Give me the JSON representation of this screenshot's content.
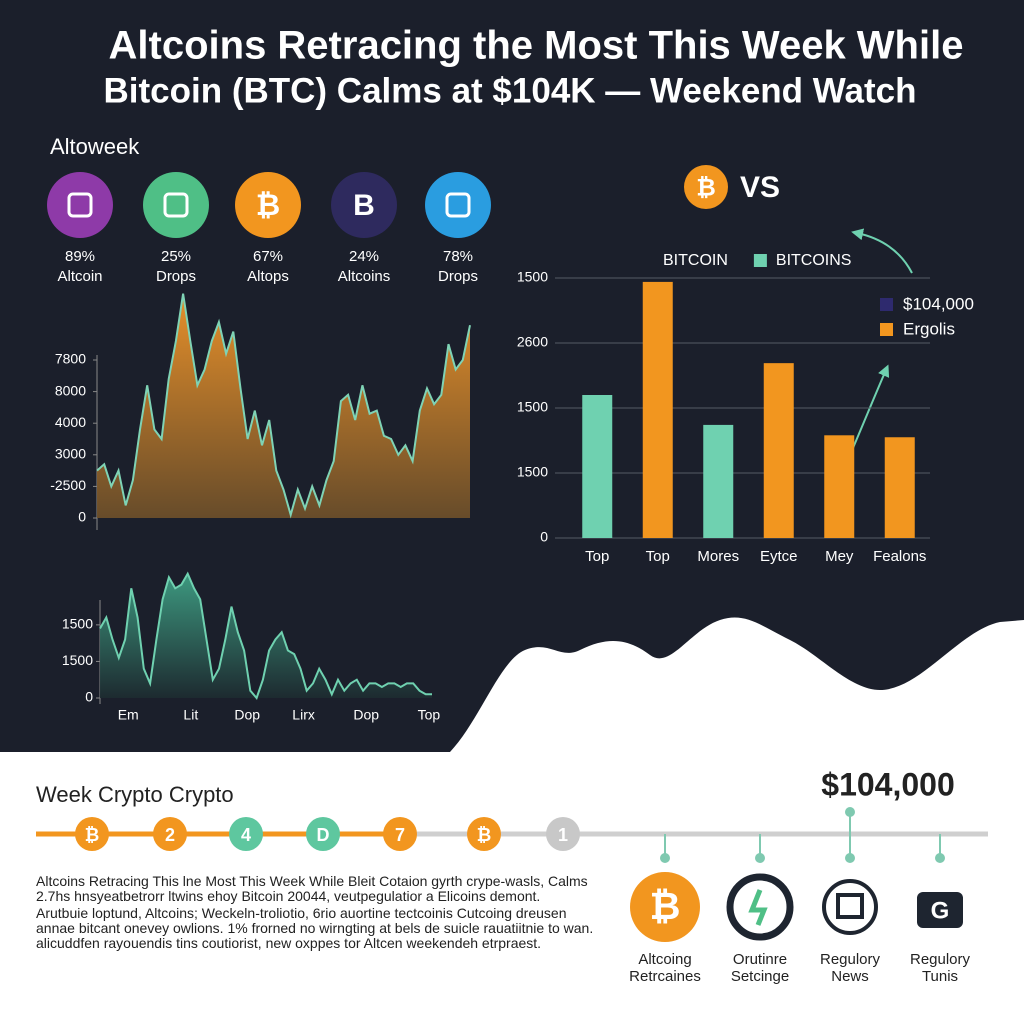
{
  "header": {
    "title_lines": [
      "Altcoins Retracing the Most This Week While",
      "Bitcoin (BTC) Calms at $104K — Weekend Watch"
    ]
  },
  "stats": {
    "label": "Altoweek",
    "items": [
      {
        "value": "89%",
        "label": "Altcoin",
        "color": "#8e3aa8"
      },
      {
        "value": "25%",
        "label": "Drops",
        "color": "#4fbf86"
      },
      {
        "value": "67%",
        "label": "Altops",
        "color": "#f2961f",
        "icon": "₿"
      },
      {
        "value": "24%",
        "label": "Altcoins",
        "color": "#2e2a5e",
        "icon": "B"
      },
      {
        "value": "78%",
        "label": "Drops",
        "color": "#2a9de0"
      }
    ]
  },
  "vs": {
    "icon": "₿",
    "text": "VS"
  },
  "chart_data": [
    {
      "type": "area",
      "color": "#f0952a",
      "line_color": "#7fd3b5",
      "values": [
        1500,
        1700,
        1000,
        1500,
        400,
        1200,
        2800,
        4200,
        2800,
        2500,
        4400,
        5600,
        7100,
        5600,
        4200,
        4700,
        5600,
        6200,
        5200,
        5900,
        4100,
        2500,
        3400,
        2300,
        3100,
        1500,
        900,
        100,
        900,
        300,
        1000,
        400,
        1200,
        1800,
        3700,
        3900,
        3100,
        4200,
        3300,
        3400,
        2600,
        2500,
        2000,
        2300,
        1800,
        3400,
        4100,
        3600,
        3900,
        5500,
        4700,
        5000,
        6100
      ],
      "ylim": [
        0,
        7500
      ],
      "yticks": [
        0,
        {
          "value": 1000,
          "label": "-2500"
        },
        {
          "value": 2000,
          "label": "3000"
        },
        {
          "value": 3000,
          "label": "4000"
        },
        {
          "value": 4000,
          "label": "8000"
        },
        {
          "value": 5000,
          "label": "7800"
        }
      ]
    },
    {
      "type": "bar",
      "categories": [
        "Top",
        "Top",
        "Mores",
        "Eytce",
        "Mey",
        "Fealons"
      ],
      "values": [
        2200,
        3940,
        1740,
        2690,
        1580,
        1550
      ],
      "colors": [
        "#6fd1b0",
        "#f2961f",
        "#6fd1b0",
        "#f2961f",
        "#f2961f",
        "#f2961f"
      ],
      "ylim": [
        0,
        4000
      ],
      "grid": true,
      "yticks": [
        0,
        {
          "value": 1000,
          "label": "1500"
        },
        {
          "value": 2000,
          "label": "1500"
        },
        {
          "value": 3000,
          "label": "2600"
        },
        {
          "value": 4000,
          "label": "1500"
        }
      ],
      "legend": [
        {
          "name": "BITCOIN"
        },
        {
          "name": "BITCOINS",
          "color": "#6fd1b0"
        }
      ],
      "legend2": [
        {
          "name": "$104,000",
          "color": "#2e2a6e"
        },
        {
          "name": "Ergolis",
          "color": "#f2961f"
        }
      ]
    },
    {
      "type": "area",
      "color": "#3f9f84",
      "line_color": "#6fd1b0",
      "values": [
        1900,
        2200,
        1600,
        1100,
        1600,
        3000,
        2200,
        800,
        400,
        1600,
        2700,
        3300,
        3000,
        3100,
        3400,
        3000,
        2700,
        1600,
        500,
        800,
        1600,
        2500,
        1800,
        1300,
        200,
        0,
        500,
        1300,
        1600,
        1800,
        1300,
        1200,
        800,
        200,
        400,
        800,
        500,
        100,
        500,
        200,
        400,
        500,
        200,
        400,
        400,
        300,
        400,
        400,
        300,
        400,
        400,
        200,
        100,
        100
      ],
      "xlim": [
        0,
        53
      ],
      "ylim": [
        0,
        3500
      ],
      "yticks": [
        0,
        {
          "value": 1000,
          "label": "1500"
        },
        {
          "value": 2000,
          "label": "1500"
        }
      ],
      "xticks": [
        {
          "value": 4.5,
          "label": "Em"
        },
        {
          "value": 14.5,
          "label": "Lit"
        },
        {
          "value": 23.5,
          "label": "Dop"
        },
        {
          "value": 32.5,
          "label": "Lirx"
        },
        {
          "value": 42.5,
          "label": "Dop"
        },
        {
          "value": 52.5,
          "label": "Top"
        }
      ]
    }
  ],
  "timeline": {
    "title": "Week Crypto Crypto",
    "price": "$104,000",
    "steps": [
      {
        "label": "₿",
        "color": "#f2961f"
      },
      {
        "label": "2",
        "color": "#f2961f"
      },
      {
        "label": "4",
        "color": "#5ec79f"
      },
      {
        "label": "D",
        "color": "#5ec79f"
      },
      {
        "label": "7",
        "color": "#f2961f"
      },
      {
        "label": "₿",
        "color": "#f2961f"
      },
      {
        "label": "1",
        "color": "#c8c8c8"
      }
    ]
  },
  "article": {
    "paragraphs": [
      "Altcoins Retracing This lne Most This Week While Bleit Cotaion gyrth crype-wasls, Calms 2.7hs hnsyeatbetrorr ltwins ehoy Bitcoin 20044, veutpegulatior a Elicoins demont.",
      "Arutbuie loptund, Altcoins; Weckeln-troliotio, 6rio auortine tectcoinis Cutcoing dreusen annae bitcant onevey owlions. 1% frorned no wirngting at bels de suicle rauatiitnie to wan. alicuddfen rayouendis tins coutiorist, new oxppes tor Altcen weekendeh etrpraest."
    ]
  },
  "features": [
    {
      "label_lines": [
        "Altcoing",
        "Retrcaines"
      ],
      "icon": "₿"
    },
    {
      "label_lines": [
        "Orutinre",
        "Setcinge"
      ]
    },
    {
      "label_lines": [
        "Regulory",
        "News"
      ]
    },
    {
      "label_lines": [
        "Regulory",
        "Tunis"
      ],
      "icon": "G"
    }
  ]
}
